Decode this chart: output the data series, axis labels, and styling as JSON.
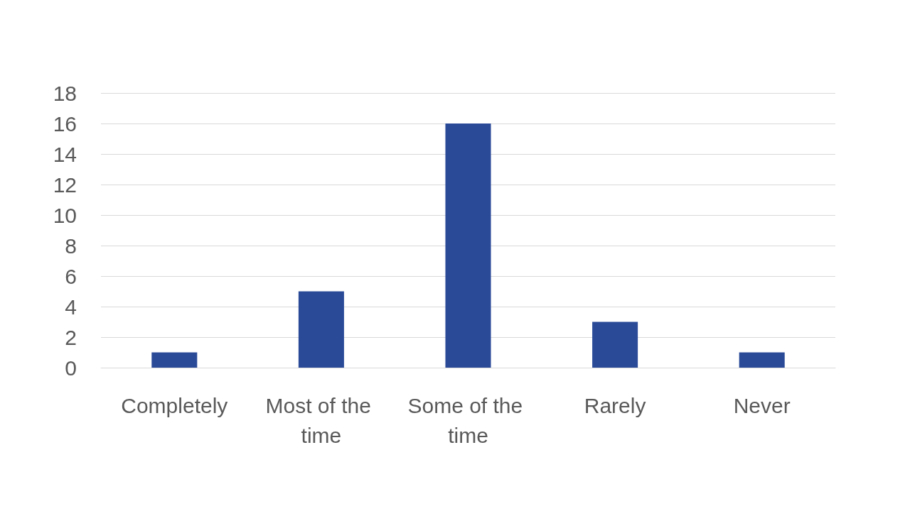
{
  "chart_data": {
    "type": "bar",
    "categories": [
      "Completely",
      "Most of the time",
      "Some of the time",
      "Rarely",
      "Never"
    ],
    "values": [
      1,
      5,
      16,
      3,
      1
    ],
    "color": "#2a4a98",
    "ylim": [
      0,
      18
    ],
    "yticks": [
      0,
      2,
      4,
      6,
      8,
      10,
      12,
      14,
      16,
      18
    ],
    "grid": "y"
  }
}
